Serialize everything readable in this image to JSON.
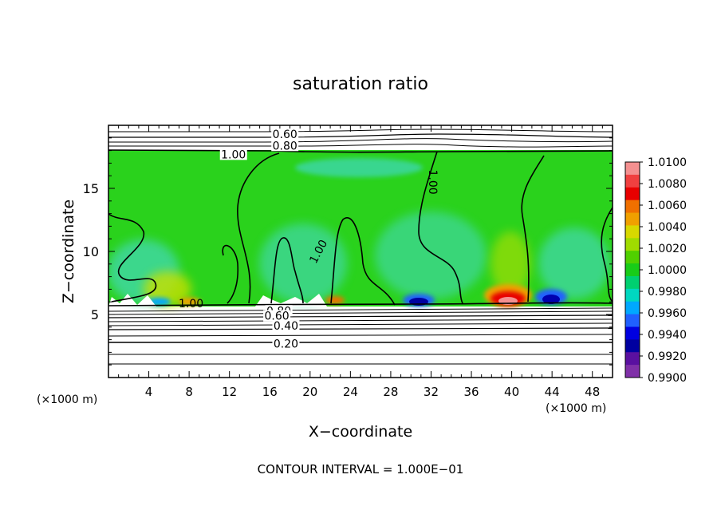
{
  "chart_data": {
    "type": "heatmap",
    "title": "saturation ratio",
    "xlabel": "X−coordinate",
    "ylabel": "Z−coordinate",
    "x_unit_left": "(×1000 m)",
    "x_unit_right": "(×1000 m)",
    "xlim": [
      0,
      50
    ],
    "ylim": [
      0,
      20
    ],
    "x_ticks": [
      4,
      8,
      12,
      16,
      20,
      24,
      28,
      32,
      36,
      40,
      44,
      48
    ],
    "y_ticks": [
      5,
      10,
      15
    ],
    "colorbar": {
      "levels": [
        "1.0100",
        "1.0080",
        "1.0060",
        "1.0040",
        "1.0020",
        "1.0000",
        "0.9980",
        "0.9960",
        "0.9940",
        "0.9920",
        "0.9900"
      ],
      "colors": [
        "#f49090",
        "#f04040",
        "#e80000",
        "#f07000",
        "#f0a000",
        "#d8d800",
        "#a0dc00",
        "#50d000",
        "#18cc18",
        "#00d070",
        "#00d8c0",
        "#00a8ff",
        "#2060ff",
        "#0000e0",
        "#0000a0",
        "#5a10a0",
        "#8030a8"
      ]
    },
    "contour_labels": [
      {
        "text": "0.60",
        "x": 17.5,
        "z": 19.3
      },
      {
        "text": "0.80",
        "x": 17.5,
        "z": 18.4
      },
      {
        "text": "1.00",
        "x": 12.4,
        "z": 17.7
      },
      {
        "text": "1.00",
        "x": 32.2,
        "z": 15.5
      },
      {
        "text": "1.00",
        "x": 20.8,
        "z": 10.0
      },
      {
        "text": "1.00",
        "x": 8.2,
        "z": 5.9
      },
      {
        "text": "0.80",
        "x": 16.9,
        "z": 5.3
      },
      {
        "text": "0.60",
        "x": 16.7,
        "z": 4.9
      },
      {
        "text": "0.40",
        "x": 17.6,
        "z": 4.1
      },
      {
        "text": "0.20",
        "x": 17.6,
        "z": 2.7
      }
    ],
    "contour_interval_text": "CONTOUR INTERVAL = 1.000E−01"
  }
}
